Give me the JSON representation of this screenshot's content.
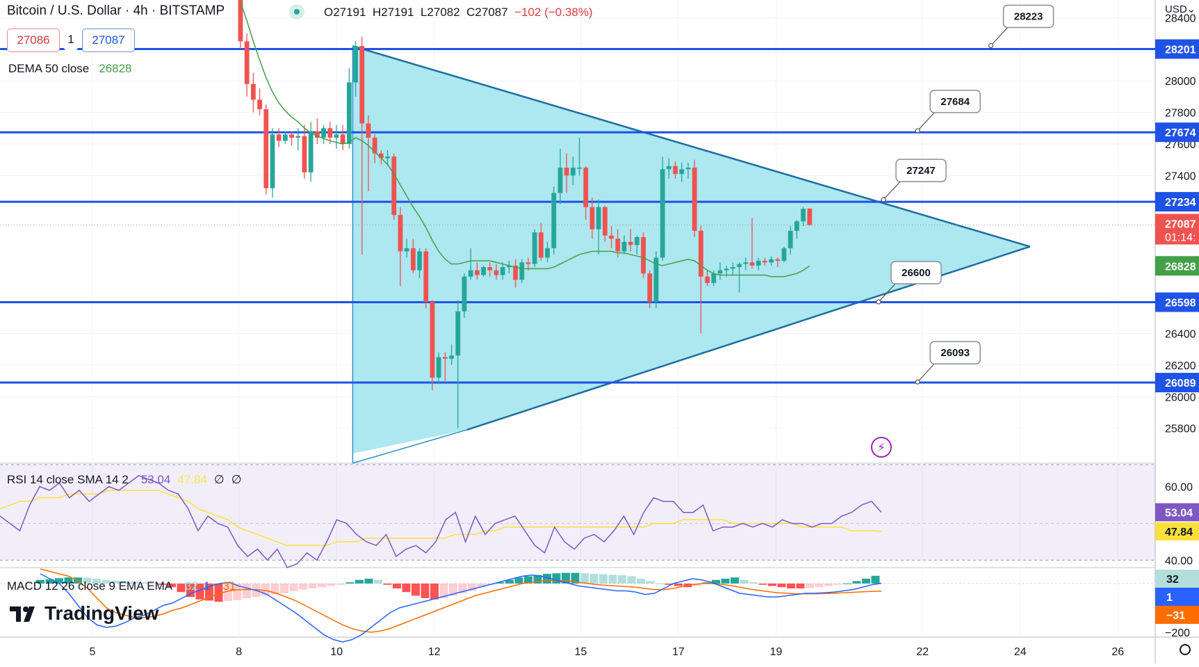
{
  "header": {
    "title": "Bitcoin / U.S. Dollar · 4h · BITSTAMP",
    "ohlc": {
      "o": "O27191",
      "h": "H27191",
      "l": "L27082",
      "c": "C27087",
      "chg": "−102 (−0.38%)"
    },
    "bid": "27086",
    "spread": "1",
    "ask": "27087",
    "currency": "USD⌄"
  },
  "dema_legend": {
    "label": "DEMA 50 close",
    "value": "26828"
  },
  "rsi_legend": {
    "label": "RSI 14 close SMA 14 2",
    "rsi": "53.04",
    "sma": "47.84",
    "e1": "∅",
    "e2": "∅"
  },
  "macd_legend": {
    "label": "MACD 12 26 close 9 EMA EMA",
    "hist": "32",
    "macd": "1",
    "signal": "−31"
  },
  "brand": "TradingView",
  "colors": {
    "up": "#26a69a",
    "down": "#ef5350",
    "level": "#1e53e5",
    "triangle_fill": "#a9e6ef",
    "triangle_edge": "#1d6ea0",
    "dema": "#43a047",
    "rsi": "#7e57c2",
    "rsi_sma": "#fbe03c",
    "macd": "#2962ff",
    "signal": "#ff6d00"
  },
  "chart_data": {
    "type": "candlestick",
    "symbol": "BTCUSD",
    "interval": "4h",
    "x_ticks": [
      "5",
      "8",
      "10",
      "12",
      "15",
      "17",
      "19",
      "22",
      "24",
      "26"
    ],
    "x_tick_days": [
      5,
      8,
      10,
      12,
      15,
      17,
      19,
      22,
      24,
      26
    ],
    "y_ticks": [
      25800,
      26000,
      26200,
      26400,
      27400,
      27600,
      27800,
      28000,
      28400
    ],
    "y_range": [
      25640,
      28450
    ],
    "price_labels": [
      {
        "text": "28201",
        "value": 28201,
        "kind": "level"
      },
      {
        "text": "27674",
        "value": 27674,
        "kind": "level"
      },
      {
        "text": "27234",
        "value": 27234,
        "kind": "level"
      },
      {
        "text": "27087",
        "value": 27087,
        "kind": "last",
        "sub": "01:14:"
      },
      {
        "text": "26828",
        "value": 26828,
        "kind": "dema"
      },
      {
        "text": "26598",
        "value": 26598,
        "kind": "level"
      },
      {
        "text": "26089",
        "value": 26089,
        "kind": "level"
      }
    ],
    "levels": [
      28201,
      27674,
      27234,
      26598,
      26089
    ],
    "level_callouts": [
      {
        "text": "28223",
        "value": 28223,
        "day": 23.4
      },
      {
        "text": "27684",
        "value": 27684,
        "day": 21.9
      },
      {
        "text": "27247",
        "value": 27247,
        "day": 21.2
      },
      {
        "text": "26600",
        "value": 26600,
        "day": 21.1
      },
      {
        "text": "26093",
        "value": 26093,
        "day": 21.9
      }
    ],
    "triangle": {
      "points": [
        {
          "day": 10.33,
          "price": 28220
        },
        {
          "day": 24.2,
          "price": 26950
        },
        {
          "day": 12.67,
          "price": 25790
        },
        {
          "day": 10.33,
          "price": 25640
        }
      ]
    },
    "candles": [
      {
        "o": 28600,
        "h": 28700,
        "l": 28200,
        "c": 28250
      },
      {
        "o": 28250,
        "h": 28300,
        "l": 27900,
        "c": 27980
      },
      {
        "o": 27980,
        "h": 28050,
        "l": 27800,
        "c": 27880
      },
      {
        "o": 27880,
        "h": 27950,
        "l": 27780,
        "c": 27820
      },
      {
        "o": 27820,
        "h": 27850,
        "l": 27280,
        "c": 27320
      },
      {
        "o": 27320,
        "h": 27700,
        "l": 27260,
        "c": 27660
      },
      {
        "o": 27660,
        "h": 27700,
        "l": 27580,
        "c": 27620
      },
      {
        "o": 27620,
        "h": 27680,
        "l": 27600,
        "c": 27660
      },
      {
        "o": 27660,
        "h": 27680,
        "l": 27590,
        "c": 27640
      },
      {
        "o": 27640,
        "h": 27700,
        "l": 27560,
        "c": 27650
      },
      {
        "o": 27650,
        "h": 27720,
        "l": 27380,
        "c": 27420
      },
      {
        "o": 27420,
        "h": 27740,
        "l": 27360,
        "c": 27680
      },
      {
        "o": 27680,
        "h": 27760,
        "l": 27600,
        "c": 27640
      },
      {
        "o": 27640,
        "h": 27720,
        "l": 27600,
        "c": 27700
      },
      {
        "o": 27700,
        "h": 27740,
        "l": 27600,
        "c": 27640
      },
      {
        "o": 27640,
        "h": 27720,
        "l": 27570,
        "c": 27660
      },
      {
        "o": 27660,
        "h": 27720,
        "l": 27560,
        "c": 27600
      },
      {
        "o": 27600,
        "h": 28080,
        "l": 27570,
        "c": 27990
      },
      {
        "o": 27990,
        "h": 28250,
        "l": 27900,
        "c": 28220
      },
      {
        "o": 28220,
        "h": 28280,
        "l": 26900,
        "c": 27730
      },
      {
        "o": 27730,
        "h": 27780,
        "l": 27300,
        "c": 27640
      },
      {
        "o": 27640,
        "h": 27660,
        "l": 27480,
        "c": 27540
      },
      {
        "o": 27540,
        "h": 27560,
        "l": 27470,
        "c": 27510
      },
      {
        "o": 27510,
        "h": 27560,
        "l": 27460,
        "c": 27520
      },
      {
        "o": 27520,
        "h": 27540,
        "l": 27120,
        "c": 27150
      },
      {
        "o": 27150,
        "h": 27200,
        "l": 26700,
        "c": 26920
      },
      {
        "o": 26920,
        "h": 27000,
        "l": 26880,
        "c": 26940
      },
      {
        "o": 26940,
        "h": 27000,
        "l": 26780,
        "c": 26800
      },
      {
        "o": 26800,
        "h": 26940,
        "l": 26750,
        "c": 26920
      },
      {
        "o": 26920,
        "h": 26940,
        "l": 26560,
        "c": 26600
      },
      {
        "o": 26600,
        "h": 26610,
        "l": 26040,
        "c": 26120
      },
      {
        "o": 26120,
        "h": 26280,
        "l": 26080,
        "c": 26250
      },
      {
        "o": 26250,
        "h": 26280,
        "l": 26100,
        "c": 26240
      },
      {
        "o": 26240,
        "h": 26330,
        "l": 26200,
        "c": 26260
      },
      {
        "o": 26260,
        "h": 26610,
        "l": 25800,
        "c": 26540
      },
      {
        "o": 26540,
        "h": 26780,
        "l": 26500,
        "c": 26760
      },
      {
        "o": 26760,
        "h": 26940,
        "l": 26740,
        "c": 26800
      },
      {
        "o": 26800,
        "h": 26850,
        "l": 26740,
        "c": 26770
      },
      {
        "o": 26770,
        "h": 26830,
        "l": 26760,
        "c": 26820
      },
      {
        "o": 26820,
        "h": 26850,
        "l": 26760,
        "c": 26800
      },
      {
        "o": 26800,
        "h": 26840,
        "l": 26740,
        "c": 26770
      },
      {
        "o": 26770,
        "h": 26850,
        "l": 26740,
        "c": 26820
      },
      {
        "o": 26820,
        "h": 26860,
        "l": 26780,
        "c": 26830
      },
      {
        "o": 26830,
        "h": 26870,
        "l": 26690,
        "c": 26740
      },
      {
        "o": 26740,
        "h": 26870,
        "l": 26720,
        "c": 26850
      },
      {
        "o": 26850,
        "h": 26880,
        "l": 26800,
        "c": 26840
      },
      {
        "o": 26840,
        "h": 27060,
        "l": 26820,
        "c": 27040
      },
      {
        "o": 27040,
        "h": 27100,
        "l": 26860,
        "c": 26880
      },
      {
        "o": 26880,
        "h": 26980,
        "l": 26850,
        "c": 26940
      },
      {
        "o": 26940,
        "h": 27330,
        "l": 26900,
        "c": 27290
      },
      {
        "o": 27290,
        "h": 27570,
        "l": 27220,
        "c": 27450
      },
      {
        "o": 27450,
        "h": 27540,
        "l": 27290,
        "c": 27400
      },
      {
        "o": 27400,
        "h": 27520,
        "l": 27340,
        "c": 27450
      },
      {
        "o": 27450,
        "h": 27640,
        "l": 27400,
        "c": 27450
      },
      {
        "o": 27450,
        "h": 27460,
        "l": 27120,
        "c": 27200
      },
      {
        "o": 27200,
        "h": 27260,
        "l": 27000,
        "c": 27060
      },
      {
        "o": 27060,
        "h": 27250,
        "l": 26900,
        "c": 27200
      },
      {
        "o": 27200,
        "h": 27210,
        "l": 26980,
        "c": 27020
      },
      {
        "o": 27020,
        "h": 27080,
        "l": 26940,
        "c": 27000
      },
      {
        "o": 27000,
        "h": 27060,
        "l": 26880,
        "c": 26920
      },
      {
        "o": 26920,
        "h": 27020,
        "l": 26900,
        "c": 26980
      },
      {
        "o": 26980,
        "h": 27060,
        "l": 26920,
        "c": 26960
      },
      {
        "o": 26960,
        "h": 27020,
        "l": 26900,
        "c": 27010
      },
      {
        "o": 27010,
        "h": 27040,
        "l": 26750,
        "c": 26780
      },
      {
        "o": 26780,
        "h": 26800,
        "l": 26560,
        "c": 26600
      },
      {
        "o": 26600,
        "h": 26920,
        "l": 26560,
        "c": 26880
      },
      {
        "o": 26880,
        "h": 27520,
        "l": 26860,
        "c": 27440
      },
      {
        "o": 27440,
        "h": 27510,
        "l": 27380,
        "c": 27460
      },
      {
        "o": 27460,
        "h": 27490,
        "l": 27380,
        "c": 27410
      },
      {
        "o": 27410,
        "h": 27480,
        "l": 27360,
        "c": 27440
      },
      {
        "o": 27440,
        "h": 27480,
        "l": 27380,
        "c": 27450
      },
      {
        "o": 27450,
        "h": 27500,
        "l": 27010,
        "c": 27050
      },
      {
        "o": 27050,
        "h": 27080,
        "l": 26400,
        "c": 26760
      },
      {
        "o": 26760,
        "h": 26800,
        "l": 26700,
        "c": 26720
      },
      {
        "o": 26720,
        "h": 26800,
        "l": 26700,
        "c": 26780
      },
      {
        "o": 26780,
        "h": 26850,
        "l": 26740,
        "c": 26800
      },
      {
        "o": 26800,
        "h": 26830,
        "l": 26760,
        "c": 26810
      },
      {
        "o": 26810,
        "h": 26850,
        "l": 26770,
        "c": 26820
      },
      {
        "o": 26820,
        "h": 26850,
        "l": 26660,
        "c": 26840
      },
      {
        "o": 26840,
        "h": 26880,
        "l": 26800,
        "c": 26850
      },
      {
        "o": 26850,
        "h": 27130,
        "l": 26810,
        "c": 26830
      },
      {
        "o": 26830,
        "h": 26880,
        "l": 26800,
        "c": 26860
      },
      {
        "o": 26860,
        "h": 26880,
        "l": 26830,
        "c": 26850
      },
      {
        "o": 26850,
        "h": 26890,
        "l": 26830,
        "c": 26870
      },
      {
        "o": 26870,
        "h": 26880,
        "l": 26820,
        "c": 26860
      },
      {
        "o": 26860,
        "h": 26950,
        "l": 26850,
        "c": 26940
      },
      {
        "o": 26940,
        "h": 27080,
        "l": 26900,
        "c": 27050
      },
      {
        "o": 27050,
        "h": 27120,
        "l": 27000,
        "c": 27110
      },
      {
        "o": 27110,
        "h": 27200,
        "l": 27080,
        "c": 27190
      },
      {
        "o": 27191,
        "h": 27191,
        "l": 27082,
        "c": 27087
      }
    ],
    "dema_50": [
      28500,
      28380,
      28250,
      28130,
      28020,
      27930,
      27860,
      27810,
      27770,
      27740,
      27700,
      27670,
      27650,
      27635,
      27620,
      27610,
      27600,
      27610,
      27640,
      27620,
      27590,
      27550,
      27510,
      27470,
      27410,
      27340,
      27270,
      27200,
      27140,
      27070,
      26990,
      26920,
      26870,
      26840,
      26840,
      26850,
      26860,
      26860,
      26860,
      26860,
      26850,
      26840,
      26830,
      26820,
      26810,
      26810,
      26810,
      26810,
      26810,
      26820,
      26840,
      26860,
      26880,
      26900,
      26910,
      26920,
      26920,
      26920,
      26920,
      26910,
      26910,
      26900,
      26890,
      26880,
      26860,
      26840,
      26830,
      26840,
      26850,
      26860,
      26870,
      26860,
      26830,
      26800,
      26780,
      26770,
      26770,
      26770,
      26770,
      26770,
      26770,
      26770,
      26770,
      26760,
      26760,
      26760,
      26770,
      26780,
      26800,
      26828
    ],
    "rsi_range": [
      38,
      66
    ],
    "rsi_band": [
      40,
      60
    ],
    "rsi_ticks": [
      60,
      40
    ],
    "rsi": [
      52,
      50,
      48,
      55,
      60,
      59,
      61,
      57,
      59,
      56,
      58,
      60,
      59,
      61,
      63,
      62,
      61,
      59,
      58,
      54,
      48,
      52,
      50,
      49,
      44,
      41,
      43,
      40,
      43,
      38,
      39,
      42,
      40,
      45,
      51,
      50,
      47,
      45,
      44,
      47,
      41,
      43,
      44,
      42,
      45,
      51,
      53,
      45,
      52,
      47,
      50,
      51,
      52,
      48,
      44,
      42,
      49,
      45,
      43,
      46,
      47,
      45,
      48,
      52,
      47,
      53,
      57,
      56,
      56,
      53,
      53,
      55,
      48,
      49,
      49,
      50,
      49,
      50,
      49,
      51,
      50,
      50,
      49,
      50,
      50,
      52,
      53,
      55,
      56,
      53.04
    ],
    "rsi_sma": [
      54,
      55,
      56,
      56,
      57,
      57,
      57,
      58,
      58,
      58,
      58,
      59,
      59,
      59,
      59,
      59,
      59,
      58,
      57,
      56,
      54,
      53,
      52,
      51,
      49,
      48,
      47,
      46,
      45,
      44,
      44,
      44,
      44,
      44,
      45,
      45,
      45,
      46,
      46,
      46,
      46,
      46,
      46,
      46,
      46,
      46,
      47,
      47,
      47,
      48,
      48,
      49,
      49,
      49,
      49,
      49,
      49,
      49,
      49,
      49,
      49,
      49,
      49,
      49,
      49,
      49,
      50,
      50,
      50,
      51,
      51,
      51,
      51,
      51,
      50,
      50,
      50,
      50,
      50,
      50,
      50,
      49,
      49,
      49,
      49,
      49,
      48,
      48,
      48,
      47.84
    ],
    "macd_range": [
      -220,
      60
    ],
    "macd_ticks": [
      {
        "text": "−200",
        "value": -200
      }
    ],
    "macd": [
      40,
      20,
      0,
      -40,
      -90,
      -140,
      -170,
      -180,
      -175,
      -160,
      -140,
      -130,
      -110,
      -90,
      -80,
      -60,
      -40,
      -25,
      -10,
      0,
      5,
      -10,
      -20,
      -30,
      -45,
      -70,
      -95,
      -120,
      -150,
      -180,
      -210,
      -230,
      -240,
      -230,
      -210,
      -180,
      -150,
      -120,
      -100,
      -90,
      -80,
      -70,
      -60,
      -50,
      -40,
      -30,
      -20,
      -10,
      0,
      10,
      20,
      30,
      35,
      30,
      20,
      10,
      0,
      -10,
      -15,
      -20,
      -25,
      -30,
      -30,
      -35,
      -45,
      -40,
      -20,
      0,
      10,
      20,
      15,
      5,
      -10,
      -25,
      -40,
      -45,
      -50,
      -55,
      -55,
      -50,
      -45,
      -40,
      -40,
      -38,
      -35,
      -30,
      -25,
      -15,
      -5,
      1
    ],
    "signal": [
      60,
      50,
      40,
      30,
      10,
      -20,
      -60,
      -100,
      -120,
      -130,
      -140,
      -140,
      -135,
      -125,
      -110,
      -100,
      -85,
      -70,
      -55,
      -40,
      -30,
      -25,
      -25,
      -25,
      -30,
      -40,
      -55,
      -70,
      -90,
      -110,
      -130,
      -150,
      -170,
      -185,
      -195,
      -200,
      -195,
      -185,
      -170,
      -155,
      -140,
      -125,
      -110,
      -95,
      -80,
      -65,
      -50,
      -40,
      -30,
      -20,
      -10,
      0,
      5,
      10,
      12,
      12,
      10,
      5,
      0,
      -5,
      -8,
      -10,
      -12,
      -15,
      -20,
      -25,
      -25,
      -20,
      -12,
      -5,
      0,
      0,
      -3,
      -8,
      -15,
      -22,
      -28,
      -33,
      -38,
      -40,
      -42,
      -42,
      -42,
      -41,
      -40,
      -38,
      -36,
      -34,
      -32,
      -31
    ],
    "hist": [
      15,
      18,
      22,
      25,
      25,
      24,
      20,
      15,
      12,
      10,
      8,
      5,
      2,
      -5,
      -15,
      -35,
      -55,
      -65,
      -70,
      -75,
      -72,
      -68,
      -60,
      -55,
      -50,
      -45,
      -40,
      -32,
      -25,
      -20,
      -15,
      -10,
      -5,
      5,
      15,
      20,
      15,
      -5,
      -20,
      -35,
      -50,
      -60,
      -65,
      -60,
      -50,
      -40,
      -30,
      -15,
      -5,
      5,
      15,
      25,
      30,
      35,
      40,
      42,
      44,
      44,
      42,
      40,
      38,
      36,
      34,
      30,
      20,
      10,
      0,
      -5,
      -10,
      -15,
      -10,
      5,
      15,
      20,
      25,
      15,
      5,
      -5,
      -10,
      -15,
      -20,
      -20,
      -18,
      -15,
      -10,
      -5,
      0,
      10,
      20,
      32
    ]
  }
}
